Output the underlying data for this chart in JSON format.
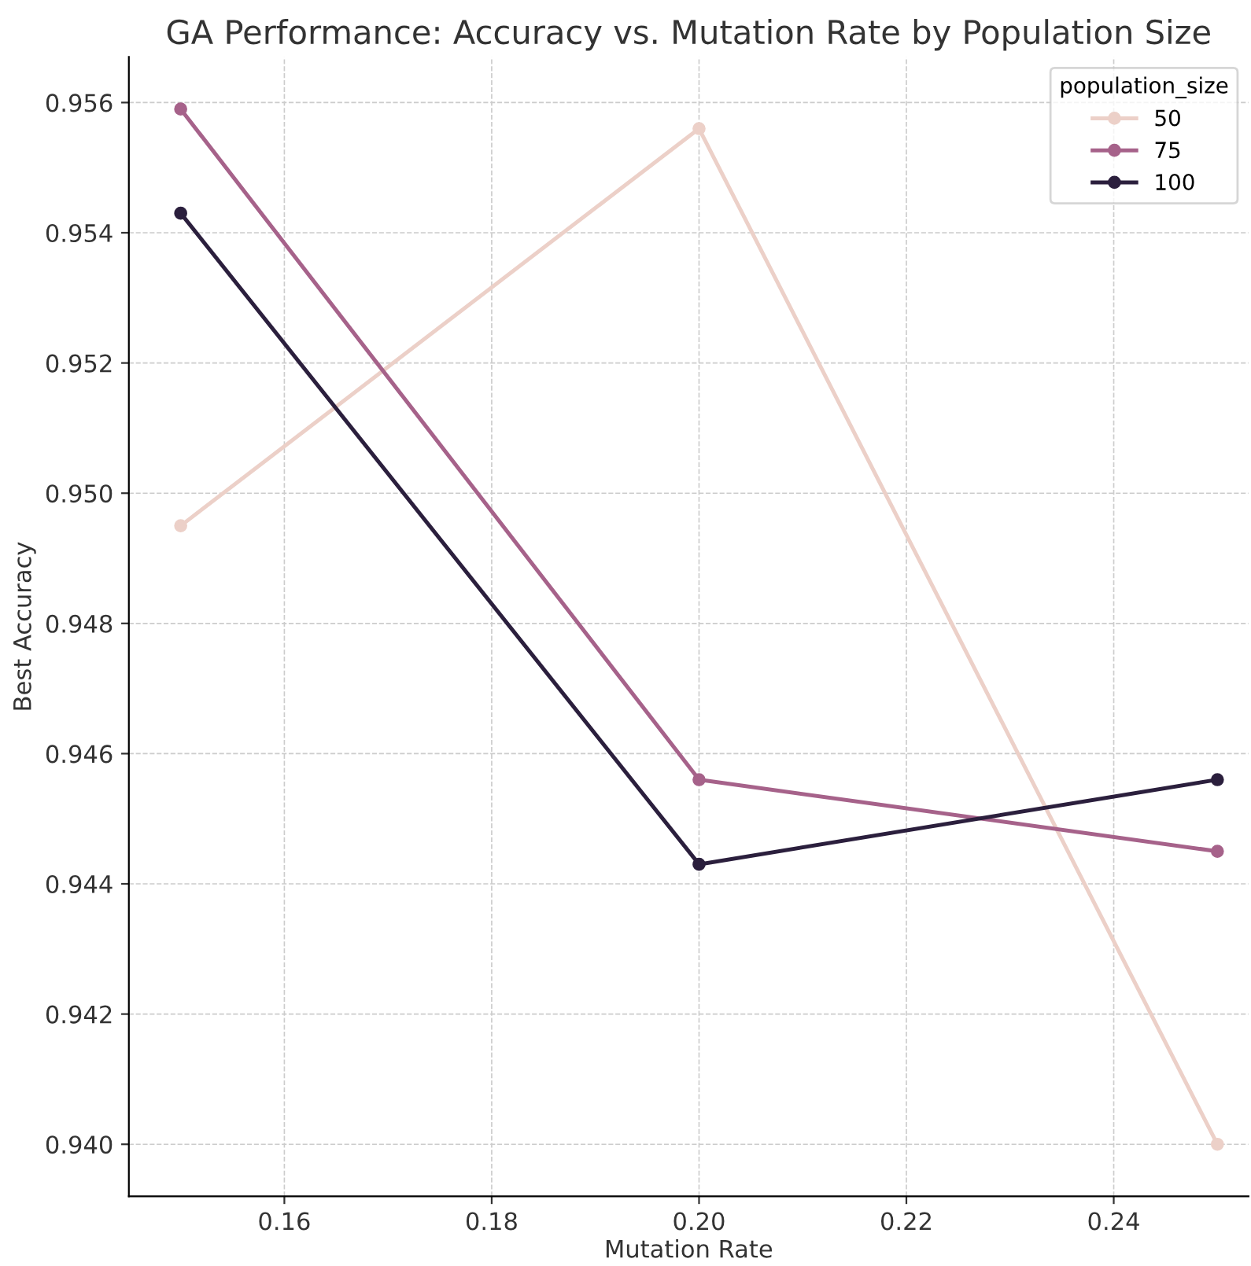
{
  "chart_data": {
    "type": "line",
    "title": "GA Performance: Accuracy vs. Mutation Rate by Population Size",
    "xlabel": "Mutation Rate",
    "ylabel": "Best Accuracy",
    "legend_title": "population_size",
    "x": [
      0.15,
      0.2,
      0.25
    ],
    "series": [
      {
        "name": "50",
        "color": "#ecd0c8",
        "values": [
          0.9495,
          0.9556,
          0.94
        ]
      },
      {
        "name": "75",
        "color": "#a6628a",
        "values": [
          0.9559,
          0.9456,
          0.9445
        ]
      },
      {
        "name": "100",
        "color": "#2b1f3d",
        "values": [
          0.9543,
          0.9443,
          0.9456
        ]
      }
    ],
    "xlim": [
      0.145,
      0.253
    ],
    "xticks": [
      {
        "value": 0.16,
        "label": "0.16"
      },
      {
        "value": 0.18,
        "label": "0.18"
      },
      {
        "value": 0.2,
        "label": "0.20"
      },
      {
        "value": 0.22,
        "label": "0.22"
      },
      {
        "value": 0.24,
        "label": "0.24"
      }
    ],
    "ylim": [
      0.9392,
      0.9567
    ],
    "yticks": [
      {
        "value": 0.94,
        "label": "0.940"
      },
      {
        "value": 0.942,
        "label": "0.942"
      },
      {
        "value": 0.944,
        "label": "0.944"
      },
      {
        "value": 0.946,
        "label": "0.946"
      },
      {
        "value": 0.948,
        "label": "0.948"
      },
      {
        "value": 0.95,
        "label": "0.950"
      },
      {
        "value": 0.952,
        "label": "0.952"
      },
      {
        "value": 0.954,
        "label": "0.954"
      },
      {
        "value": 0.956,
        "label": "0.956"
      }
    ],
    "grid": true,
    "legend": "top right",
    "marker": "circle",
    "line_style": "solid"
  }
}
